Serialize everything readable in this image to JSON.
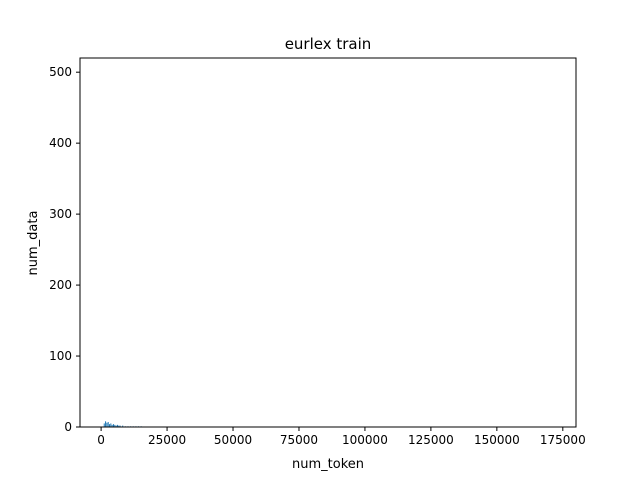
{
  "chart_data": {
    "type": "bar",
    "title": "eurlex train",
    "xlabel": "num_token",
    "ylabel": "num_data",
    "xlim": [
      -8000,
      180000
    ],
    "ylim": [
      0,
      520
    ],
    "x_ticks": [
      0,
      25000,
      50000,
      75000,
      100000,
      125000,
      150000,
      175000
    ],
    "x_tick_labels": [
      "0",
      "25000",
      "50000",
      "75000",
      "100000",
      "125000",
      "150000",
      "175000"
    ],
    "y_ticks": [
      0,
      100,
      200,
      300,
      400,
      500
    ],
    "y_tick_labels": [
      "0",
      "100",
      "200",
      "300",
      "400",
      "500"
    ],
    "bar_color": "#1f77b4",
    "bars": [
      {
        "x": 1000,
        "value": 5
      },
      {
        "x": 1500,
        "value": 8
      },
      {
        "x": 2000,
        "value": 6
      },
      {
        "x": 2500,
        "value": 7
      },
      {
        "x": 3000,
        "value": 4
      },
      {
        "x": 3500,
        "value": 5
      },
      {
        "x": 4000,
        "value": 3
      },
      {
        "x": 4500,
        "value": 4
      },
      {
        "x": 5000,
        "value": 3
      },
      {
        "x": 5500,
        "value": 2
      },
      {
        "x": 6000,
        "value": 3
      },
      {
        "x": 6500,
        "value": 2
      },
      {
        "x": 7000,
        "value": 2
      },
      {
        "x": 8000,
        "value": 2
      },
      {
        "x": 9000,
        "value": 1
      },
      {
        "x": 10000,
        "value": 1
      },
      {
        "x": 11000,
        "value": 1
      },
      {
        "x": 12000,
        "value": 1
      },
      {
        "x": 13000,
        "value": 1
      },
      {
        "x": 14000,
        "value": 1
      },
      {
        "x": 15000,
        "value": 1
      }
    ]
  }
}
